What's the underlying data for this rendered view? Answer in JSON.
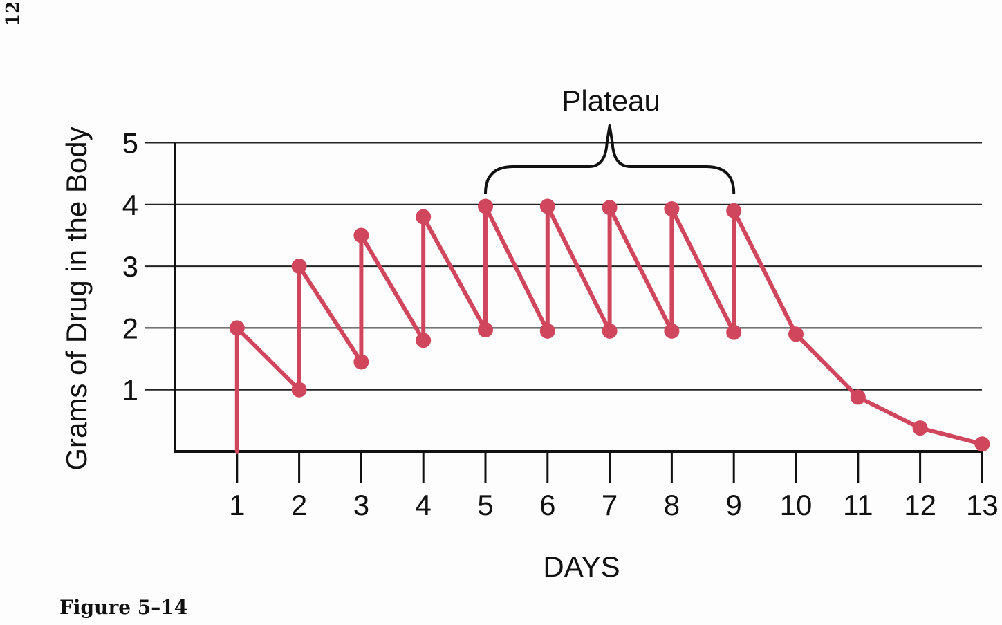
{
  "page": {
    "page_number": "12",
    "caption": "Figure 5–14"
  },
  "chart_data": {
    "type": "line",
    "title": "",
    "xlabel": "DAYS",
    "ylabel": "Grams of Drug in the Body",
    "annotation": "Plateau",
    "annotation_span": [
      5,
      9
    ],
    "xlim": [
      0,
      13
    ],
    "ylim": [
      0,
      5
    ],
    "x_ticks": [
      1,
      2,
      3,
      4,
      5,
      6,
      7,
      8,
      9,
      10,
      11,
      12,
      13
    ],
    "y_ticks": [
      1,
      2,
      3,
      4,
      5
    ],
    "grid": "horizontal",
    "line_color": "#d0465d",
    "series": [
      {
        "points": [
          [
            1,
            0
          ],
          [
            1,
            2
          ],
          [
            2,
            1
          ],
          [
            2,
            3
          ],
          [
            3,
            1.45
          ],
          [
            3,
            3.5
          ],
          [
            4,
            1.8
          ],
          [
            4,
            3.8
          ],
          [
            5,
            1.97
          ],
          [
            5,
            3.97
          ],
          [
            6,
            1.95
          ],
          [
            6,
            3.97
          ],
          [
            7,
            1.95
          ],
          [
            7,
            3.95
          ],
          [
            8,
            1.95
          ],
          [
            8,
            3.93
          ],
          [
            9,
            1.93
          ],
          [
            9,
            3.9
          ],
          [
            10,
            1.9
          ],
          [
            11,
            0.88
          ],
          [
            12,
            0.38
          ],
          [
            13,
            0.12
          ]
        ],
        "markers": [
          [
            1,
            2
          ],
          [
            2,
            1
          ],
          [
            2,
            3
          ],
          [
            3,
            1.45
          ],
          [
            3,
            3.5
          ],
          [
            4,
            1.8
          ],
          [
            4,
            3.8
          ],
          [
            5,
            1.97
          ],
          [
            5,
            3.97
          ],
          [
            6,
            1.95
          ],
          [
            6,
            3.97
          ],
          [
            7,
            1.95
          ],
          [
            7,
            3.95
          ],
          [
            8,
            1.95
          ],
          [
            8,
            3.93
          ],
          [
            9,
            1.93
          ],
          [
            9,
            3.9
          ],
          [
            10,
            1.9
          ],
          [
            11,
            0.88
          ],
          [
            12,
            0.38
          ],
          [
            13,
            0.12
          ]
        ]
      }
    ]
  }
}
